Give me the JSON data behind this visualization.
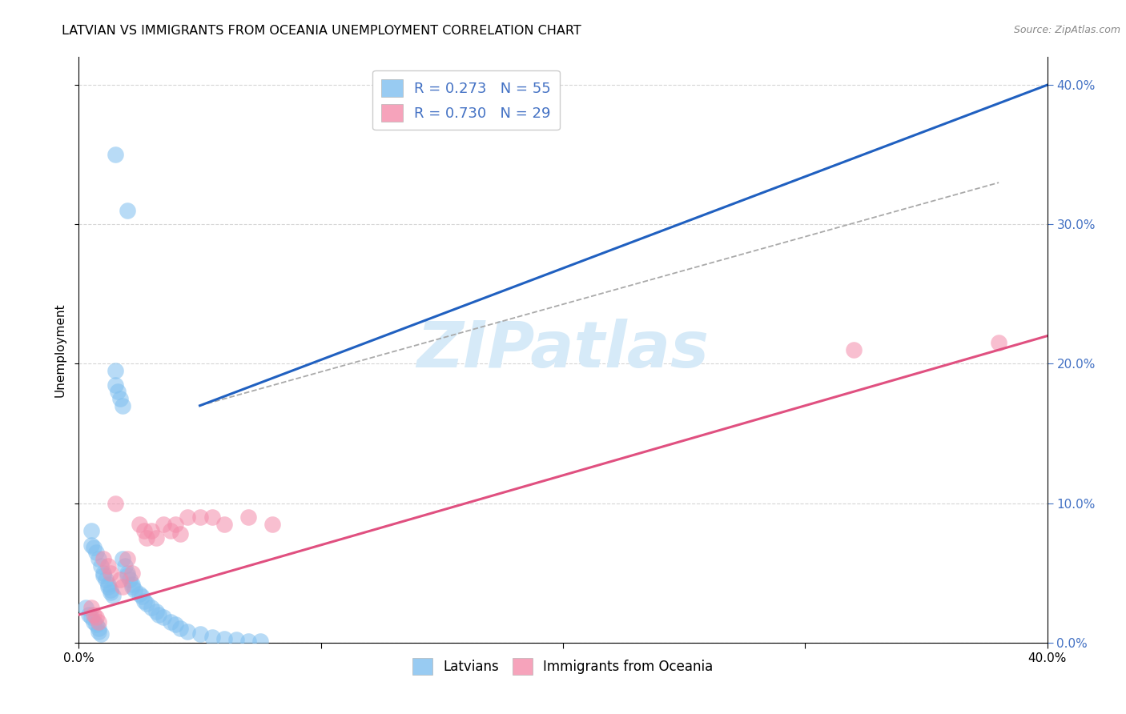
{
  "title": "LATVIAN VS IMMIGRANTS FROM OCEANIA UNEMPLOYMENT CORRELATION CHART",
  "source": "Source: ZipAtlas.com",
  "ylabel": "Unemployment",
  "legend_label1": "R = 0.273   N = 55",
  "legend_label2": "R = 0.730   N = 29",
  "legend_bottom1": "Latvians",
  "legend_bottom2": "Immigrants from Oceania",
  "color_blue": "#7fbfef",
  "color_pink": "#f48caa",
  "line_color_blue": "#2060c0",
  "line_color_pink": "#e05080",
  "line_color_dash": "#aaaaaa",
  "watermark_text": "ZIPatlas",
  "watermark_color": "#d6eaf8",
  "tick_color": "#4472c4",
  "xlim": [
    0.0,
    0.4
  ],
  "ylim": [
    0.0,
    0.42
  ],
  "xticks": [
    0.0,
    0.1,
    0.2,
    0.3,
    0.4
  ],
  "yticks": [
    0.0,
    0.1,
    0.2,
    0.3,
    0.4
  ],
  "lv_x": [
    0.005,
    0.005,
    0.006,
    0.007,
    0.008,
    0.009,
    0.01,
    0.01,
    0.011,
    0.012,
    0.012,
    0.013,
    0.013,
    0.014,
    0.015,
    0.015,
    0.016,
    0.017,
    0.018,
    0.018,
    0.019,
    0.02,
    0.02,
    0.021,
    0.022,
    0.022,
    0.023,
    0.025,
    0.026,
    0.027,
    0.028,
    0.03,
    0.032,
    0.033,
    0.035,
    0.038,
    0.04,
    0.042,
    0.045,
    0.05,
    0.055,
    0.06,
    0.065,
    0.07,
    0.075,
    0.003,
    0.004,
    0.005,
    0.006,
    0.007,
    0.008,
    0.008,
    0.009,
    0.015,
    0.02
  ],
  "lv_y": [
    0.08,
    0.07,
    0.068,
    0.065,
    0.06,
    0.055,
    0.05,
    0.048,
    0.045,
    0.042,
    0.04,
    0.038,
    0.036,
    0.034,
    0.195,
    0.185,
    0.18,
    0.175,
    0.17,
    0.06,
    0.055,
    0.05,
    0.048,
    0.045,
    0.042,
    0.04,
    0.038,
    0.035,
    0.033,
    0.03,
    0.028,
    0.025,
    0.022,
    0.02,
    0.018,
    0.015,
    0.013,
    0.01,
    0.008,
    0.006,
    0.004,
    0.003,
    0.002,
    0.001,
    0.001,
    0.025,
    0.02,
    0.018,
    0.015,
    0.013,
    0.01,
    0.008,
    0.006,
    0.35,
    0.31
  ],
  "oc_x": [
    0.005,
    0.006,
    0.007,
    0.008,
    0.01,
    0.012,
    0.013,
    0.015,
    0.017,
    0.018,
    0.02,
    0.022,
    0.025,
    0.027,
    0.028,
    0.03,
    0.032,
    0.035,
    0.038,
    0.04,
    0.042,
    0.045,
    0.05,
    0.055,
    0.06,
    0.07,
    0.08,
    0.32,
    0.38
  ],
  "oc_y": [
    0.025,
    0.02,
    0.018,
    0.015,
    0.06,
    0.055,
    0.05,
    0.1,
    0.045,
    0.04,
    0.06,
    0.05,
    0.085,
    0.08,
    0.075,
    0.08,
    0.075,
    0.085,
    0.08,
    0.085,
    0.078,
    0.09,
    0.09,
    0.09,
    0.085,
    0.09,
    0.085,
    0.21,
    0.215
  ],
  "blue_line_x": [
    0.05,
    0.4
  ],
  "blue_line_y": [
    0.17,
    0.4
  ],
  "pink_line_x": [
    0.0,
    0.4
  ],
  "pink_line_y": [
    0.02,
    0.22
  ],
  "dash_line_x": [
    0.05,
    0.38
  ],
  "dash_line_y": [
    0.17,
    0.33
  ]
}
